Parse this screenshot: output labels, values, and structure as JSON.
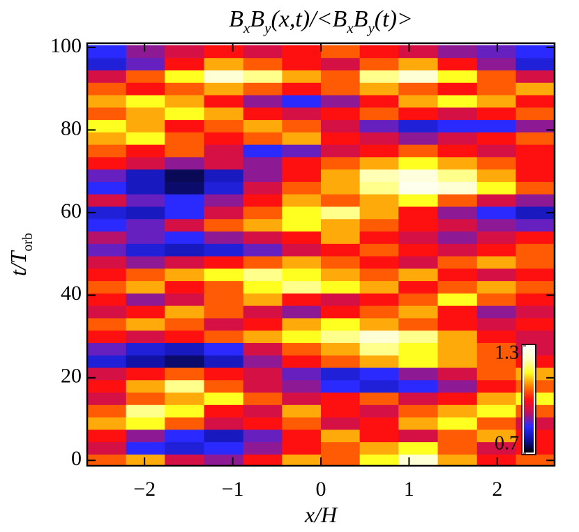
{
  "chart_data": {
    "type": "heatmap",
    "title": [
      {
        "text": "B"
      },
      {
        "text": "x",
        "sub": true
      },
      {
        "text": "B"
      },
      {
        "text": "y",
        "sub": true
      },
      {
        "text": "(x,t)/<"
      },
      {
        "text": "B"
      },
      {
        "text": "x",
        "sub": true
      },
      {
        "text": "B"
      },
      {
        "text": "y",
        "sub": true
      },
      {
        "text": "(t)>"
      }
    ],
    "xlabel": [
      {
        "text": "x/H"
      }
    ],
    "ylabel": [
      {
        "text": "t/T"
      },
      {
        "text": "orb",
        "sub": true
      }
    ],
    "xlim": [
      -2.65,
      2.65
    ],
    "ylim": [
      -1.3,
      101
    ],
    "xticks": [
      {
        "value": -2,
        "label": "−2"
      },
      {
        "value": -1,
        "label": "−1"
      },
      0,
      1,
      2
    ],
    "yticks": [
      0,
      20,
      40,
      60,
      80,
      100
    ],
    "clim": [
      0.7,
      1.3
    ],
    "cticks": [
      0.7,
      1.3
    ],
    "colormap": [
      "#000000",
      "#1010a0",
      "#2a2aff",
      "#c01060",
      "#ff1010",
      "#ff8000",
      "#ffff20",
      "#ffffc0",
      "#ffffff"
    ],
    "x": [
      -2.43,
      -1.99,
      -1.55,
      -1.1,
      -0.66,
      -0.22,
      0.22,
      0.66,
      1.1,
      1.55,
      1.99,
      2.43
    ],
    "y": [
      0,
      3,
      6,
      9,
      12,
      15,
      18,
      21,
      24,
      27,
      30,
      33,
      36,
      39,
      42,
      45,
      48,
      51,
      54,
      57,
      60,
      63,
      66,
      69,
      72,
      75,
      78,
      81,
      84,
      87,
      90,
      93,
      96,
      99
    ],
    "z": [
      [
        1.05,
        1.1,
        0.95,
        0.9,
        1.0,
        1.1,
        1.05,
        1.15,
        1.25,
        1.1,
        1.0,
        1.05
      ],
      [
        0.95,
        0.85,
        0.82,
        0.85,
        0.9,
        1.0,
        1.05,
        1.1,
        1.15,
        1.05,
        0.95,
        1.0
      ],
      [
        1.0,
        0.9,
        0.85,
        0.8,
        0.88,
        1.0,
        1.1,
        1.0,
        0.95,
        1.05,
        1.1,
        1.0
      ],
      [
        1.1,
        1.15,
        1.05,
        0.95,
        1.0,
        1.05,
        0.95,
        1.0,
        1.1,
        1.15,
        1.05,
        0.95
      ],
      [
        1.05,
        1.2,
        1.15,
        1.0,
        0.95,
        1.1,
        1.0,
        0.95,
        1.05,
        1.1,
        1.15,
        1.05
      ],
      [
        0.95,
        1.05,
        1.1,
        1.15,
        1.05,
        0.95,
        1.0,
        1.05,
        0.95,
        1.0,
        1.1,
        1.15
      ],
      [
        1.0,
        1.1,
        1.2,
        1.05,
        0.95,
        0.9,
        0.85,
        0.82,
        0.85,
        0.9,
        1.0,
        1.05
      ],
      [
        0.95,
        1.0,
        1.05,
        1.0,
        0.95,
        0.88,
        0.82,
        0.85,
        0.9,
        0.95,
        1.05,
        1.1
      ],
      [
        0.82,
        0.78,
        0.75,
        0.8,
        0.9,
        1.0,
        1.05,
        1.1,
        1.15,
        1.1,
        1.05,
        1.0
      ],
      [
        0.88,
        0.82,
        0.8,
        0.85,
        0.95,
        1.05,
        1.1,
        1.2,
        1.15,
        1.1,
        1.05,
        0.95
      ],
      [
        1.0,
        0.95,
        1.0,
        1.05,
        1.1,
        1.15,
        1.2,
        1.25,
        1.2,
        1.1,
        1.0,
        0.95
      ],
      [
        1.05,
        1.1,
        1.05,
        0.95,
        1.0,
        1.1,
        1.15,
        1.1,
        1.05,
        1.0,
        0.95,
        1.0
      ],
      [
        0.95,
        1.0,
        1.1,
        1.05,
        0.95,
        0.9,
        1.0,
        1.05,
        1.1,
        1.0,
        0.9,
        0.95
      ],
      [
        1.0,
        0.9,
        0.95,
        1.05,
        1.1,
        1.0,
        0.95,
        1.0,
        1.05,
        1.15,
        1.05,
        1.0
      ],
      [
        1.05,
        1.1,
        1.0,
        1.05,
        1.15,
        1.2,
        1.15,
        1.1,
        1.0,
        1.05,
        1.1,
        1.05
      ],
      [
        1.0,
        1.05,
        1.1,
        1.15,
        1.2,
        1.15,
        1.1,
        1.05,
        1.1,
        1.0,
        0.95,
        1.0
      ],
      [
        0.95,
        0.9,
        0.95,
        1.0,
        1.05,
        1.1,
        1.05,
        1.0,
        0.95,
        1.05,
        1.1,
        1.05
      ],
      [
        0.88,
        0.82,
        0.8,
        0.82,
        0.88,
        0.95,
        1.0,
        1.05,
        1.0,
        0.95,
        1.0,
        1.05
      ],
      [
        0.92,
        0.88,
        0.85,
        0.9,
        0.95,
        1.0,
        1.1,
        1.0,
        0.95,
        0.9,
        0.95,
        1.0
      ],
      [
        0.85,
        0.88,
        0.95,
        1.05,
        1.1,
        1.15,
        1.1,
        1.05,
        1.0,
        0.95,
        0.9,
        0.88
      ],
      [
        0.82,
        0.8,
        0.85,
        0.95,
        1.05,
        1.15,
        1.2,
        1.1,
        1.0,
        0.9,
        0.85,
        0.8
      ],
      [
        0.95,
        0.88,
        0.85,
        0.9,
        1.0,
        1.1,
        1.05,
        1.1,
        1.15,
        1.05,
        0.95,
        0.9
      ],
      [
        0.85,
        0.8,
        0.75,
        0.82,
        0.95,
        1.05,
        1.1,
        1.2,
        1.28,
        1.25,
        1.15,
        1.05
      ],
      [
        0.88,
        0.8,
        0.74,
        0.8,
        0.9,
        1.0,
        1.1,
        1.22,
        1.26,
        1.2,
        1.1,
        1.0
      ],
      [
        1.0,
        0.95,
        0.9,
        0.95,
        0.9,
        1.0,
        1.05,
        1.1,
        1.15,
        1.1,
        1.05,
        1.0
      ],
      [
        1.05,
        1.0,
        1.05,
        0.95,
        0.85,
        0.88,
        0.95,
        1.0,
        1.05,
        1.0,
        0.95,
        1.0
      ],
      [
        1.1,
        1.15,
        1.05,
        1.0,
        1.05,
        1.1,
        1.0,
        0.95,
        0.9,
        0.95,
        1.0,
        1.05
      ],
      [
        1.15,
        1.1,
        1.0,
        1.05,
        1.1,
        1.05,
        0.95,
        0.88,
        0.82,
        0.85,
        0.85,
        0.9
      ],
      [
        1.05,
        1.1,
        1.15,
        1.1,
        1.0,
        0.95,
        1.0,
        1.05,
        1.0,
        0.95,
        1.0,
        1.05
      ],
      [
        1.1,
        1.15,
        1.1,
        1.0,
        0.9,
        0.85,
        0.9,
        1.0,
        1.1,
        1.15,
        1.1,
        1.0
      ],
      [
        1.05,
        1.0,
        1.05,
        1.1,
        1.05,
        1.0,
        1.05,
        1.1,
        1.05,
        1.0,
        1.05,
        1.1
      ],
      [
        0.95,
        1.05,
        1.15,
        1.25,
        1.2,
        1.1,
        1.05,
        1.2,
        1.25,
        1.15,
        1.05,
        0.95
      ],
      [
        0.82,
        0.88,
        1.0,
        1.1,
        1.05,
        1.0,
        0.95,
        1.05,
        1.1,
        1.0,
        0.9,
        0.82
      ],
      [
        0.85,
        0.9,
        0.95,
        1.0,
        0.95,
        1.0,
        1.05,
        1.0,
        0.95,
        0.9,
        0.88,
        0.85
      ]
    ]
  }
}
